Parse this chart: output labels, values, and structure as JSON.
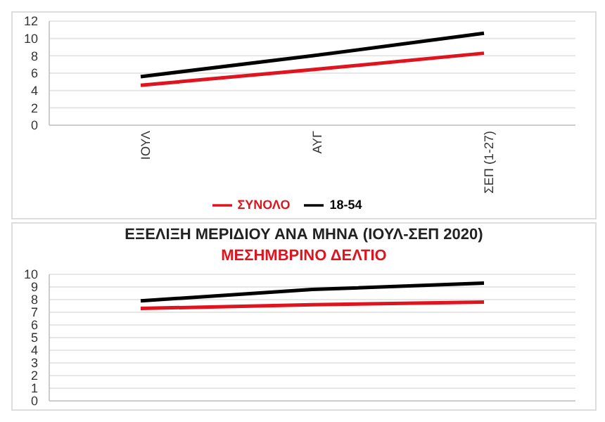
{
  "chart_data": [
    {
      "type": "line",
      "categories": [
        "ΙΟΥΛ",
        "ΑΥΓ",
        "ΣΕΠ (1-27)"
      ],
      "series": [
        {
          "name": "ΣΥΝΟΛΟ",
          "color": "#e0141e",
          "values": [
            4.6,
            6.4,
            8.3
          ]
        },
        {
          "name": "18-54",
          "color": "#000000",
          "values": [
            5.6,
            8.0,
            10.6
          ]
        }
      ],
      "ylim": [
        0,
        12
      ],
      "yticks": [
        0,
        2,
        4,
        6,
        8,
        10,
        12
      ],
      "grid": "y",
      "legend": "bottom",
      "marker": "none"
    },
    {
      "type": "line",
      "title": "ΕΞΕΛΙΞΗ ΜΕΡΙΔΙΟΥ ΑΝΑ ΜΗΝΑ (ΙΟΥΛ-ΣΕΠ 2020)",
      "subtitle": "ΜΕΣΗΜΒΡΙΝΟ ΔΕΛΤΙΟ",
      "categories": [
        null,
        null,
        null
      ],
      "series": [
        {
          "color": "#e0141e",
          "values": [
            7.3,
            7.6,
            7.8
          ]
        },
        {
          "color": "#000000",
          "values": [
            7.9,
            8.8,
            9.3
          ]
        }
      ],
      "ylim": [
        0,
        10
      ],
      "yticks": [
        0,
        1,
        2,
        3,
        4,
        5,
        6,
        7,
        8,
        9,
        10
      ],
      "grid": "y",
      "tick_labels": "y",
      "marker": "none"
    }
  ]
}
